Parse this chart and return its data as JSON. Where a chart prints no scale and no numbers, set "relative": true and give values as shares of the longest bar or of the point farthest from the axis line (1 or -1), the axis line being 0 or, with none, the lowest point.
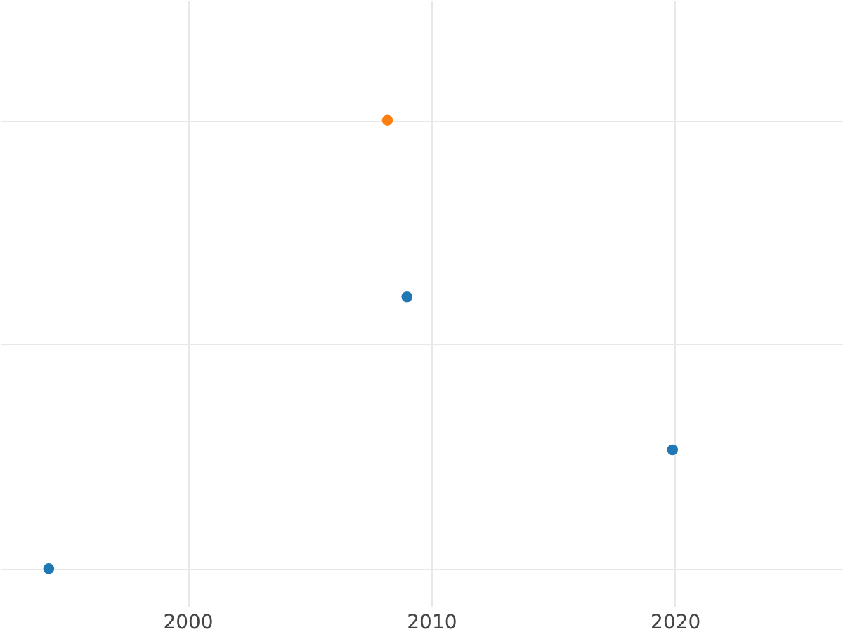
{
  "chart_data": {
    "type": "scatter",
    "relative": true,
    "xlim": [
      1992.3,
      2026.9
    ],
    "xticks": [
      2000,
      2010,
      2020
    ],
    "grid": true,
    "series": [
      {
        "color": "#1f77b4",
        "x": [
          1994.3,
          2009.0,
          2019.9
        ],
        "values": [
          0,
          0.606,
          0.265
        ]
      },
      {
        "color": "#ff7f0e",
        "x": [
          2008.2
        ],
        "values": [
          1
        ]
      }
    ]
  }
}
